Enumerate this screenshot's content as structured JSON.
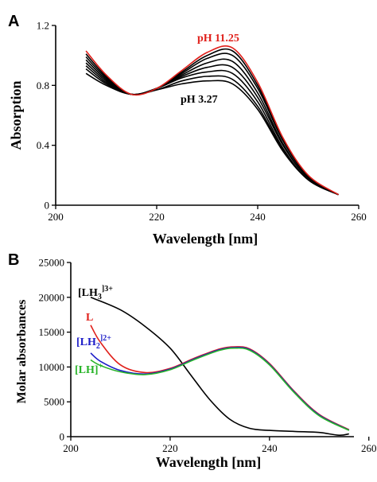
{
  "chart_data": [
    {
      "type": "line",
      "panel_label": "A",
      "xlabel": "Wavelength [nm]",
      "ylabel": "Absorption",
      "xlim": [
        200,
        260
      ],
      "ylim": [
        0,
        1.2
      ],
      "xticks": [
        "200",
        "220",
        "240",
        "260"
      ],
      "yticks": [
        "0",
        "0.4",
        "0.8",
        "1.2"
      ],
      "grid": false,
      "annotations": [
        {
          "text": "pH 11.25",
          "color": "#e0201b"
        },
        {
          "text": "pH 3.27",
          "color": "#000000"
        }
      ],
      "series": [
        {
          "color": "#000000",
          "x": [
            206,
            210,
            215,
            220,
            225,
            230,
            235,
            240,
            245,
            250,
            256
          ],
          "y": [
            0.88,
            0.8,
            0.74,
            0.77,
            0.81,
            0.83,
            0.81,
            0.64,
            0.36,
            0.17,
            0.07
          ]
        },
        {
          "color": "#000000",
          "x": [
            206,
            210,
            215,
            220,
            225,
            230,
            235,
            240,
            245,
            250,
            256
          ],
          "y": [
            0.91,
            0.81,
            0.74,
            0.77,
            0.83,
            0.86,
            0.84,
            0.66,
            0.37,
            0.17,
            0.07
          ]
        },
        {
          "color": "#000000",
          "x": [
            206,
            210,
            215,
            220,
            225,
            230,
            235,
            240,
            245,
            250,
            256
          ],
          "y": [
            0.93,
            0.82,
            0.74,
            0.78,
            0.85,
            0.89,
            0.88,
            0.69,
            0.38,
            0.17,
            0.07
          ]
        },
        {
          "color": "#000000",
          "x": [
            206,
            210,
            215,
            220,
            225,
            230,
            235,
            240,
            245,
            250,
            256
          ],
          "y": [
            0.95,
            0.83,
            0.74,
            0.78,
            0.86,
            0.92,
            0.92,
            0.72,
            0.4,
            0.18,
            0.07
          ]
        },
        {
          "color": "#000000",
          "x": [
            206,
            210,
            215,
            220,
            225,
            230,
            235,
            240,
            245,
            250,
            256
          ],
          "y": [
            0.97,
            0.84,
            0.74,
            0.78,
            0.87,
            0.95,
            0.96,
            0.75,
            0.41,
            0.18,
            0.07
          ]
        },
        {
          "color": "#000000",
          "x": [
            206,
            210,
            215,
            220,
            225,
            230,
            235,
            240,
            245,
            250,
            256
          ],
          "y": [
            0.99,
            0.85,
            0.74,
            0.78,
            0.88,
            0.98,
            1.0,
            0.78,
            0.43,
            0.19,
            0.07
          ]
        },
        {
          "color": "#000000",
          "x": [
            206,
            210,
            215,
            220,
            225,
            230,
            235,
            240,
            245,
            250,
            256
          ],
          "y": [
            1.01,
            0.86,
            0.74,
            0.78,
            0.89,
            1.0,
            1.03,
            0.8,
            0.44,
            0.19,
            0.07
          ]
        },
        {
          "color": "#e0201b",
          "x": [
            206,
            210,
            215,
            220,
            225,
            230,
            235,
            240,
            245,
            250,
            256
          ],
          "y": [
            1.03,
            0.87,
            0.74,
            0.78,
            0.9,
            1.02,
            1.05,
            0.82,
            0.45,
            0.2,
            0.07
          ]
        }
      ]
    },
    {
      "type": "line",
      "panel_label": "B",
      "xlabel": "Wavelength [nm]",
      "ylabel": "Molar absorbances",
      "xlim": [
        200,
        257
      ],
      "ylim": [
        0,
        25000
      ],
      "xticks": [
        "200",
        "220",
        "240",
        "260"
      ],
      "yticks": [
        "0",
        "5000",
        "10000",
        "15000",
        "20000",
        "25000"
      ],
      "grid": false,
      "series": [
        {
          "name_main": "[LH",
          "name_sub": "3",
          "name_sup": "]3+",
          "color": "#000000",
          "x": [
            204,
            210,
            215,
            220,
            224,
            228,
            232,
            236,
            240,
            245,
            250,
            254,
            256
          ],
          "y": [
            20000,
            18200,
            15800,
            12700,
            9000,
            5300,
            2500,
            1200,
            900,
            750,
            600,
            200,
            400
          ]
        },
        {
          "name_main": "L",
          "color": "#e0201b",
          "x": [
            204,
            206,
            210,
            215,
            220,
            225,
            230,
            233,
            236,
            240,
            245,
            250,
            256
          ],
          "y": [
            16000,
            13500,
            10300,
            9200,
            9800,
            11300,
            12600,
            12900,
            12600,
            10500,
            6500,
            3200,
            1000
          ]
        },
        {
          "name_main": "[LH",
          "name_sub": "2",
          "name_sup": "]2+",
          "color": "#1d1dc8",
          "x": [
            204,
            206,
            210,
            215,
            220,
            225,
            230,
            233,
            236,
            240,
            245,
            250,
            256
          ],
          "y": [
            12000,
            10800,
            9500,
            9000,
            9700,
            11200,
            12500,
            12800,
            12500,
            10400,
            6400,
            3100,
            950
          ]
        },
        {
          "name_main": "[LH]",
          "name_sup": "+",
          "color": "#28b428",
          "x": [
            204,
            206,
            210,
            215,
            220,
            225,
            230,
            233,
            236,
            240,
            245,
            250,
            256
          ],
          "y": [
            11000,
            10200,
            9300,
            8900,
            9600,
            11100,
            12400,
            12700,
            12400,
            10300,
            6300,
            3000,
            900
          ]
        }
      ]
    }
  ]
}
